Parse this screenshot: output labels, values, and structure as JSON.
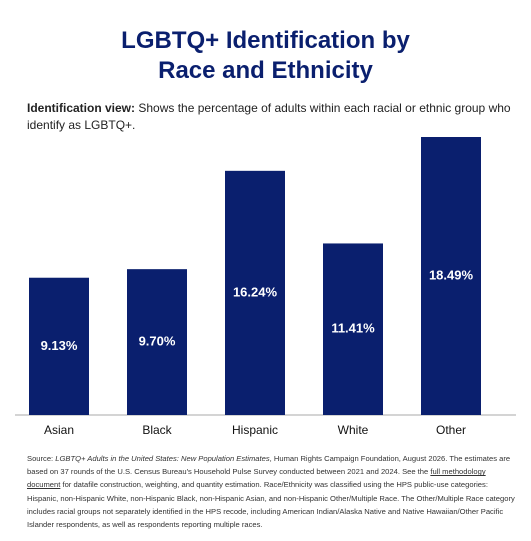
{
  "chart_data": {
    "type": "bar",
    "title": [
      "LGBTQ+ Identification by",
      "Race and Ethnicity"
    ],
    "subtitle": {
      "label": "Identification view:",
      "text": "Shows the percentage of adults within each racial or ethnic group who identify as LGBTQ+."
    },
    "categories": [
      "Asian",
      "Black",
      "Hispanic",
      "White",
      "Other"
    ],
    "values": [
      9.13,
      9.7,
      16.24,
      11.41,
      18.49
    ],
    "value_labels": [
      "9.13%",
      "9.70%",
      "16.24%",
      "11.41%",
      "18.49%"
    ],
    "color": "#0a1f6e",
    "source": {
      "prefix": "Source: ",
      "publication": "LGBTQ+ Adults in the United States: New Population Estimates",
      "text1": ", Human Rights Campaign Foundation, August 2026. The estimates are based on 37 rounds of the U.S. Census Bureau's Household Pulse Survey conducted between 2021 and 2024. See the ",
      "link": "full methodology document",
      "text2": " for datafile construction, weighting, and quantity estimation.  Race/Ethnicity was classified using the HPS public-use categories: Hispanic, non-Hispanic White, non-Hispanic Black, non-Hispanic Asian, and non-Hispanic Other/Multiple Race. The Other/Multiple Race category includes racial groups not separately identified in the HPS recode, including American Indian/Alaska Native and Native Hawaiian/Other Pacific Islander respondents, as well as respondents reporting multiple races."
    }
  }
}
